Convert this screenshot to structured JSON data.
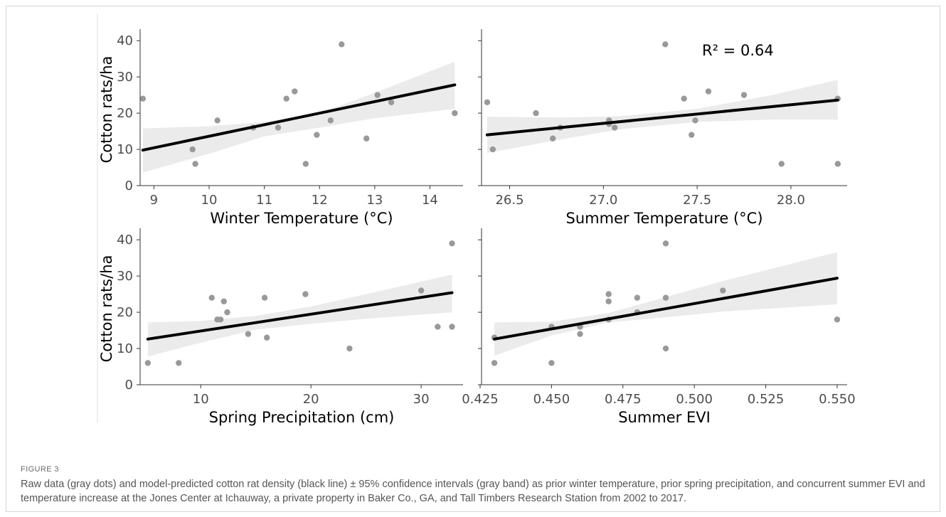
{
  "figure": {
    "label": "FIGURE 3",
    "caption": "Raw data (gray dots) and model-predicted cotton rat density (black line) ± 95% confidence intervals (gray band) as prior winter temperature, prior spring precipitation, and concurrent summer EVI and temperature increase at the Jones Center at Ichauway, a private property in Baker Co., GA, and Tall Timbers Research Station from 2002 to 2017."
  },
  "colors": {
    "points": "#999999",
    "band": "#ebebeb",
    "line": "#000000"
  },
  "chart_data": [
    {
      "type": "scatter",
      "xlabel": "Winter Temperature (°C)",
      "ylabel": "Cotton rats/ha",
      "xlim": [
        8.75,
        14.6
      ],
      "ylim": [
        0,
        42
      ],
      "xticks": [
        9,
        10,
        11,
        12,
        13,
        14
      ],
      "xtick_labels": [
        "9",
        "10",
        "11",
        "12",
        "13",
        "14"
      ],
      "yticks": [
        0,
        10,
        20,
        30,
        40
      ],
      "ytick_labels": [
        "0",
        "10",
        "20",
        "30",
        "40"
      ],
      "points": [
        [
          8.8,
          24
        ],
        [
          9.7,
          10
        ],
        [
          9.75,
          6
        ],
        [
          10.15,
          18
        ],
        [
          10.8,
          16
        ],
        [
          11.25,
          16
        ],
        [
          11.4,
          24
        ],
        [
          11.55,
          26
        ],
        [
          11.75,
          6
        ],
        [
          11.95,
          14
        ],
        [
          12.2,
          18
        ],
        [
          12.4,
          39
        ],
        [
          12.85,
          13
        ],
        [
          13.05,
          25
        ],
        [
          13.3,
          23
        ],
        [
          14.45,
          20
        ]
      ],
      "fit": [
        [
          8.8,
          9.8
        ],
        [
          14.45,
          27.8
        ]
      ],
      "band_upper": [
        [
          8.8,
          15.8
        ],
        [
          10.0,
          16.4
        ],
        [
          11.0,
          17.6
        ],
        [
          12.0,
          20.0
        ],
        [
          13.0,
          25.6
        ],
        [
          14.45,
          34.2
        ]
      ],
      "band_lower": [
        [
          8.8,
          3.6
        ],
        [
          10.0,
          8.8
        ],
        [
          11.0,
          13.6
        ],
        [
          12.0,
          16.0
        ],
        [
          13.0,
          18.6
        ],
        [
          14.45,
          21.2
        ]
      ],
      "annotation": ""
    },
    {
      "type": "scatter",
      "xlabel": "Summer Temperature (°C)",
      "ylabel": "",
      "xlim": [
        26.35,
        28.3
      ],
      "ylim": [
        0,
        42
      ],
      "xticks": [
        26.5,
        27.0,
        27.5,
        28.0
      ],
      "xtick_labels": [
        "26.5",
        "27.0",
        "27.5",
        "28.0"
      ],
      "yticks": [
        0,
        10,
        20,
        30,
        40
      ],
      "ytick_labels": [],
      "points": [
        [
          26.38,
          23
        ],
        [
          26.41,
          10
        ],
        [
          26.64,
          20
        ],
        [
          26.73,
          13
        ],
        [
          26.77,
          16
        ],
        [
          27.03,
          18
        ],
        [
          27.03,
          17
        ],
        [
          27.06,
          16
        ],
        [
          27.33,
          39
        ],
        [
          27.43,
          24
        ],
        [
          27.47,
          14
        ],
        [
          27.49,
          18
        ],
        [
          27.56,
          26
        ],
        [
          27.75,
          25
        ],
        [
          27.95,
          6
        ],
        [
          28.25,
          24
        ],
        [
          28.25,
          6
        ]
      ],
      "fit": [
        [
          26.38,
          14.0
        ],
        [
          28.25,
          23.6
        ]
      ],
      "band_upper": [
        [
          26.38,
          19.0
        ],
        [
          26.8,
          18.8
        ],
        [
          27.1,
          19.2
        ],
        [
          27.5,
          21.2
        ],
        [
          27.9,
          25.0
        ],
        [
          28.25,
          29.2
        ]
      ],
      "band_lower": [
        [
          26.38,
          9.0
        ],
        [
          26.8,
          13.0
        ],
        [
          27.1,
          15.6
        ],
        [
          27.5,
          17.6
        ],
        [
          27.9,
          18.2
        ],
        [
          28.25,
          18.2
        ]
      ],
      "annotation": "R² = 0.64"
    },
    {
      "type": "scatter",
      "xlabel": "Spring Precipitation (cm)",
      "ylabel": "Cotton rats/ha",
      "xlim": [
        4.5,
        33.8
      ],
      "ylim": [
        0,
        42
      ],
      "xticks": [
        10,
        20,
        30
      ],
      "xtick_labels": [
        "10",
        "20",
        "30"
      ],
      "yticks": [
        0,
        10,
        20,
        30,
        40
      ],
      "ytick_labels": [
        "0",
        "10",
        "20",
        "30",
        "40"
      ],
      "points": [
        [
          5.2,
          6
        ],
        [
          8.0,
          6
        ],
        [
          11.0,
          24
        ],
        [
          11.5,
          18
        ],
        [
          11.8,
          18
        ],
        [
          12.1,
          23
        ],
        [
          12.4,
          20
        ],
        [
          14.3,
          14
        ],
        [
          15.8,
          24
        ],
        [
          16.0,
          13
        ],
        [
          19.5,
          25
        ],
        [
          23.5,
          10
        ],
        [
          30.0,
          26
        ],
        [
          31.5,
          16
        ],
        [
          32.8,
          39
        ],
        [
          32.8,
          16
        ]
      ],
      "fit": [
        [
          5.2,
          12.6
        ],
        [
          32.8,
          25.4
        ]
      ],
      "band_upper": [
        [
          5.2,
          17.2
        ],
        [
          10,
          17.6
        ],
        [
          15,
          19.0
        ],
        [
          20,
          21.6
        ],
        [
          25,
          25.0
        ],
        [
          32.8,
          30.4
        ]
      ],
      "band_lower": [
        [
          5.2,
          7.8
        ],
        [
          10,
          11.6
        ],
        [
          15,
          15.2
        ],
        [
          20,
          16.8
        ],
        [
          25,
          18.2
        ],
        [
          32.8,
          20.0
        ]
      ],
      "annotation": ""
    },
    {
      "type": "scatter",
      "xlabel": "Summer EVI",
      "ylabel": "",
      "xlim": [
        0.4255,
        0.5535
      ],
      "ylim": [
        0,
        42
      ],
      "xticks": [
        0.425,
        0.45,
        0.475,
        0.5,
        0.525,
        0.55
      ],
      "xtick_labels": [
        "0.425",
        "0.450",
        "0.475",
        "0.500",
        "0.525",
        "0.550"
      ],
      "yticks": [
        0,
        10,
        20,
        30,
        40
      ],
      "ytick_labels": [],
      "points": [
        [
          0.43,
          13
        ],
        [
          0.43,
          6
        ],
        [
          0.45,
          16
        ],
        [
          0.45,
          6
        ],
        [
          0.46,
          16
        ],
        [
          0.46,
          14
        ],
        [
          0.47,
          25
        ],
        [
          0.47,
          23
        ],
        [
          0.47,
          18
        ],
        [
          0.48,
          24
        ],
        [
          0.48,
          20
        ],
        [
          0.49,
          39
        ],
        [
          0.49,
          24
        ],
        [
          0.49,
          10
        ],
        [
          0.51,
          26
        ],
        [
          0.55,
          18
        ]
      ],
      "fit": [
        [
          0.43,
          12.6
        ],
        [
          0.55,
          29.4
        ]
      ],
      "band_upper": [
        [
          0.43,
          17.2
        ],
        [
          0.45,
          17.4
        ],
        [
          0.47,
          19.8
        ],
        [
          0.49,
          24.2
        ],
        [
          0.51,
          28.6
        ],
        [
          0.55,
          36.6
        ]
      ],
      "band_lower": [
        [
          0.43,
          8.0
        ],
        [
          0.45,
          13.6
        ],
        [
          0.47,
          17.2
        ],
        [
          0.49,
          18.6
        ],
        [
          0.51,
          20.2
        ],
        [
          0.55,
          22.2
        ]
      ],
      "annotation": ""
    }
  ]
}
